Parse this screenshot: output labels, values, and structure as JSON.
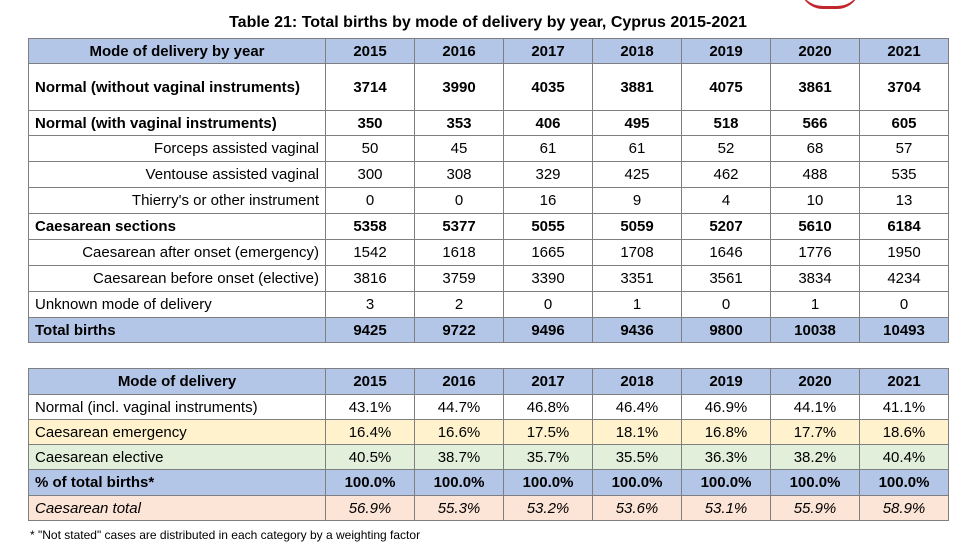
{
  "table1": {
    "title": "Table 21: Total births by mode of delivery by year, Cyprus 2015-2021",
    "header": [
      "Mode of delivery by year",
      2015,
      2016,
      2017,
      2018,
      2019,
      2020,
      2021
    ],
    "rows": [
      {
        "label": "Normal (without vaginal instruments)",
        "values": [
          3714,
          3990,
          4035,
          3881,
          4075,
          3861,
          3704
        ]
      },
      {
        "label": "Normal (with vaginal instruments)",
        "values": [
          350,
          353,
          406,
          495,
          518,
          566,
          605
        ]
      },
      {
        "label": "Forceps assisted vaginal",
        "values": [
          50,
          45,
          61,
          61,
          52,
          68,
          57
        ]
      },
      {
        "label": "Ventouse assisted vaginal",
        "values": [
          300,
          308,
          329,
          425,
          462,
          488,
          535
        ]
      },
      {
        "label": "Thierry's or other instrument",
        "values": [
          0,
          0,
          16,
          9,
          4,
          10,
          13
        ]
      },
      {
        "label": "Caesarean sections",
        "values": [
          5358,
          5377,
          5055,
          5059,
          5207,
          5610,
          6184
        ]
      },
      {
        "label": "Caesarean after onset (emergency)",
        "values": [
          1542,
          1618,
          1665,
          1708,
          1646,
          1776,
          1950
        ]
      },
      {
        "label": "Caesarean before onset (elective)",
        "values": [
          3816,
          3759,
          3390,
          3351,
          3561,
          3834,
          4234
        ]
      },
      {
        "label": "Unknown mode of delivery",
        "values": [
          3,
          2,
          0,
          1,
          0,
          1,
          0
        ]
      },
      {
        "label": "Total births",
        "values": [
          9425,
          9722,
          9496,
          9436,
          9800,
          10038,
          10493
        ]
      }
    ]
  },
  "table2": {
    "header": [
      "Mode of delivery",
      2015,
      2016,
      2017,
      2018,
      2019,
      2020,
      2021
    ],
    "rows": [
      {
        "label": "Normal (incl. vaginal instruments)",
        "values": [
          "43.1%",
          "44.7%",
          "46.8%",
          "46.4%",
          "46.9%",
          "44.1%",
          "41.1%"
        ]
      },
      {
        "label": "Caesarean emergency",
        "values": [
          "16.4%",
          "16.6%",
          "17.5%",
          "18.1%",
          "16.8%",
          "17.7%",
          "18.6%"
        ]
      },
      {
        "label": "Caesarean elective",
        "values": [
          "40.5%",
          "38.7%",
          "35.7%",
          "35.5%",
          "36.3%",
          "38.2%",
          "40.4%"
        ]
      },
      {
        "label": "% of total births*",
        "values": [
          "100.0%",
          "100.0%",
          "100.0%",
          "100.0%",
          "100.0%",
          "100.0%",
          "100.0%"
        ]
      },
      {
        "label": "Caesarean total",
        "values": [
          "56.9%",
          "55.3%",
          "53.2%",
          "53.6%",
          "53.1%",
          "55.9%",
          "58.9%"
        ]
      }
    ]
  },
  "footnote": "* \"Not stated\" cases are distributed in each category by a weighting factor"
}
